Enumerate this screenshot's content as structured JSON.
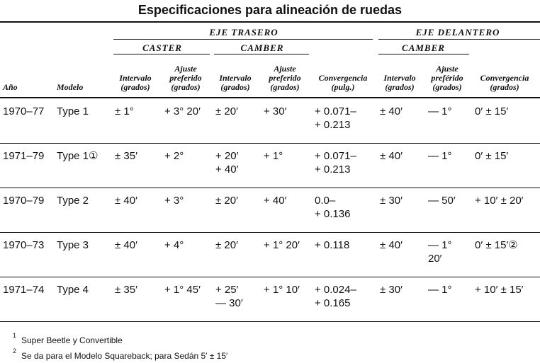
{
  "title": "Especificaciones para alineación de ruedas",
  "groups": {
    "rear": "EJE TRASERO",
    "front": "EJE DELANTERO",
    "rear_caster": "CASTER",
    "rear_camber": "CAMBER",
    "front_camber": "CAMBER"
  },
  "table": {
    "columns": [
      "Año",
      "Modelo",
      "Intervalo\n(grados)",
      "Ajuste\npreferido\n(grados)",
      "Intervalo\n(grados)",
      "Ajuste\npreferido\n(grados)",
      "Convergencia\n(pulg.)",
      "Intervalo\n(grados)",
      "Ajuste\npreférido\n(grados)",
      "Convergencia\n(grados)"
    ],
    "rows": [
      [
        "1970–77",
        "Type 1",
        "± 1°",
        "+ 3° 20′",
        "± 20′",
        "+ 30′",
        "+ 0.071–\n+ 0.213",
        "± 40′",
        "— 1°",
        "0′ ± 15′"
      ],
      [
        "1971–79",
        "Type 1①",
        "± 35′",
        "+ 2°",
        "+ 20′\n+ 40′",
        "+ 1°",
        "+ 0.071–\n+ 0.213",
        "± 40′",
        "— 1°",
        "0′ ± 15′"
      ],
      [
        "1970–79",
        "Type 2",
        "± 40′",
        "+ 3°",
        "± 20′",
        "+ 40′",
        "0.0–\n+ 0.136",
        "± 30′",
        "— 50′",
        "+ 10′ ± 20′"
      ],
      [
        "1970–73",
        "Type 3",
        "± 40′",
        "+ 4°",
        "± 20′",
        "+ 1° 20′",
        "+ 0.118",
        "± 40′",
        "— 1°\n20′",
        "0′ ± 15′②"
      ],
      [
        "1971–74",
        "Type 4",
        "± 35′",
        "+ 1° 45′",
        "+ 25′\n— 30′",
        "+ 1° 10′",
        "+ 0.024–\n+ 0.165",
        "± 30′",
        "— 1°",
        "+ 10′ ± 15′"
      ]
    ]
  },
  "footnotes": [
    {
      "mark": "1",
      "text": "Super Beetle y Convertible"
    },
    {
      "mark": "2",
      "text": "Se da para el Modelo Squareback; para Sedán 5′ ± 15′"
    }
  ]
}
